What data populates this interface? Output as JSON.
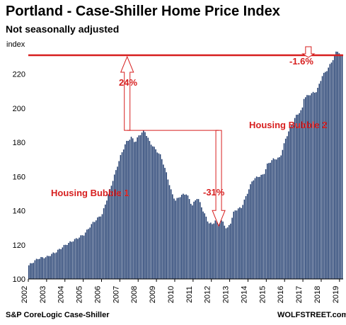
{
  "chart_data": {
    "type": "bar",
    "title": "Portland - Case-Shiller Home Price Index",
    "subtitle": "Not seasonally adjusted",
    "y_unit_label": "index",
    "ylim": [
      100,
      236
    ],
    "yticks": [
      100,
      120,
      140,
      160,
      180,
      200,
      220
    ],
    "x_start": "2002-01",
    "x_ticks": [
      "2002",
      "2003",
      "2004",
      "2005",
      "2006",
      "2007",
      "2008",
      "2009",
      "2010",
      "2011",
      "2012",
      "2013",
      "2014",
      "2015",
      "2016",
      "2017",
      "2018",
      "2019"
    ],
    "grid": false,
    "bar_color": "#1f3b6e",
    "accent_color": "#d71f1f",
    "anchors": [
      [
        2002.0,
        108
      ],
      [
        2002.5,
        112
      ],
      [
        2003.0,
        113
      ],
      [
        2003.5,
        116
      ],
      [
        2004.0,
        120
      ],
      [
        2004.5,
        123
      ],
      [
        2005.0,
        126
      ],
      [
        2005.5,
        133
      ],
      [
        2006.0,
        138
      ],
      [
        2006.5,
        155
      ],
      [
        2007.0,
        172
      ],
      [
        2007.3,
        180
      ],
      [
        2007.6,
        183
      ],
      [
        2007.8,
        180
      ],
      [
        2008.0,
        184
      ],
      [
        2008.3,
        187
      ],
      [
        2008.6,
        180
      ],
      [
        2008.9,
        176
      ],
      [
        2009.2,
        172
      ],
      [
        2009.5,
        162
      ],
      [
        2009.8,
        150
      ],
      [
        2010.0,
        146
      ],
      [
        2010.3,
        149
      ],
      [
        2010.6,
        150
      ],
      [
        2010.9,
        143
      ],
      [
        2011.2,
        148
      ],
      [
        2011.5,
        140
      ],
      [
        2011.8,
        133
      ],
      [
        2012.0,
        132
      ],
      [
        2012.3,
        136
      ],
      [
        2012.6,
        133
      ],
      [
        2012.8,
        129
      ],
      [
        2013.0,
        133
      ],
      [
        2013.2,
        140
      ],
      [
        2013.6,
        142
      ],
      [
        2013.9,
        150
      ],
      [
        2014.2,
        158
      ],
      [
        2014.5,
        160
      ],
      [
        2014.8,
        161
      ],
      [
        2015.0,
        167
      ],
      [
        2015.3,
        170
      ],
      [
        2015.7,
        171
      ],
      [
        2016.0,
        182
      ],
      [
        2016.3,
        190
      ],
      [
        2016.6,
        196
      ],
      [
        2016.9,
        199
      ],
      [
        2017.0,
        206
      ],
      [
        2017.3,
        208
      ],
      [
        2017.7,
        210
      ],
      [
        2018.0,
        219
      ],
      [
        2018.3,
        223
      ],
      [
        2018.6,
        229
      ],
      [
        2018.8,
        234
      ],
      [
        2018.95,
        232
      ],
      [
        2019.0,
        231
      ]
    ],
    "annotations": {
      "bubble1_label": "Housing Bubble 1",
      "bubble2_label": "Housing Bubble 2",
      "rise_pct": "24%",
      "drop_pct": "-31%",
      "recent_pct": "-1.6%"
    }
  },
  "footer": {
    "source": "S&P CoreLogic Case-Shiller",
    "brand": "WOLFSTREET.com"
  }
}
